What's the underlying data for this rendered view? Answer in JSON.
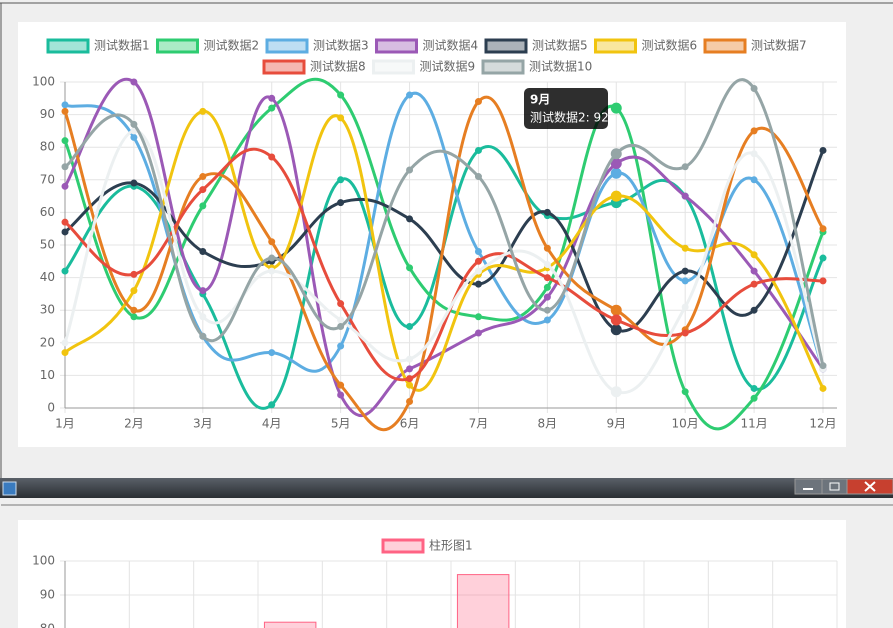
{
  "chart_data": [
    {
      "type": "line",
      "categories": [
        "1月",
        "2月",
        "3月",
        "4月",
        "5月",
        "6月",
        "7月",
        "8月",
        "9月",
        "10月",
        "11月",
        "12月"
      ],
      "series": [
        {
          "name": "测试数据1",
          "color": "#1abc9c",
          "values": [
            42,
            68,
            35,
            1,
            70,
            25,
            79,
            59,
            63,
            65,
            6,
            46
          ]
        },
        {
          "name": "测试数据2",
          "color": "#2ecc71",
          "values": [
            82,
            28,
            62,
            92,
            96,
            43,
            28,
            37,
            92,
            5,
            3,
            54
          ]
        },
        {
          "name": "测试数据3",
          "color": "#5dade2",
          "values": [
            93,
            83,
            22,
            17,
            19,
            96,
            48,
            27,
            72,
            39,
            70,
            12
          ]
        },
        {
          "name": "测试数据4",
          "color": "#9b59b6",
          "values": [
            68,
            100,
            36,
            95,
            4,
            12,
            23,
            34,
            75,
            65,
            42,
            12
          ]
        },
        {
          "name": "测试数据5",
          "color": "#2c3e50",
          "values": [
            54,
            69,
            48,
            45,
            63,
            58,
            38,
            60,
            24,
            42,
            30,
            79
          ]
        },
        {
          "name": "测试数据6",
          "color": "#f1c40f",
          "values": [
            17,
            36,
            91,
            43,
            89,
            7,
            41,
            43,
            65,
            49,
            47,
            6
          ]
        },
        {
          "name": "测试数据7",
          "color": "#e67e22",
          "values": [
            91,
            30,
            71,
            51,
            7,
            2,
            94,
            49,
            30,
            24,
            85,
            55
          ]
        },
        {
          "name": "测试数据8",
          "color": "#e74c3c",
          "values": [
            57,
            41,
            67,
            77,
            32,
            9,
            45,
            40,
            27,
            23,
            38,
            39
          ]
        },
        {
          "name": "测试数据9",
          "color": "#ecf0f1",
          "values": [
            20,
            85,
            28,
            42,
            27,
            15,
            42,
            44,
            5,
            31,
            78,
            12
          ]
        },
        {
          "name": "测试数据10",
          "color": "#95a5a6",
          "values": [
            74,
            87,
            22,
            46,
            25,
            73,
            71,
            30,
            78,
            74,
            98,
            13
          ]
        }
      ],
      "ylim": [
        0,
        100
      ],
      "yticks": [
        0,
        10,
        20,
        30,
        40,
        50,
        60,
        70,
        80,
        90,
        100
      ],
      "grid": true,
      "tooltip": {
        "title": "9月",
        "body": "测试数据2: 92"
      }
    },
    {
      "type": "bar",
      "categories": [
        null,
        null,
        null,
        null,
        null,
        null,
        null,
        null,
        null,
        null,
        null,
        null
      ],
      "series": [
        {
          "name": "柱形图1",
          "color": "#ff6384",
          "values": [
            null,
            null,
            null,
            82,
            null,
            null,
            96,
            null,
            null,
            null,
            null,
            null
          ]
        }
      ],
      "ylim": [
        80,
        100
      ],
      "yticks": [
        80,
        90,
        100
      ],
      "grid": true
    }
  ]
}
